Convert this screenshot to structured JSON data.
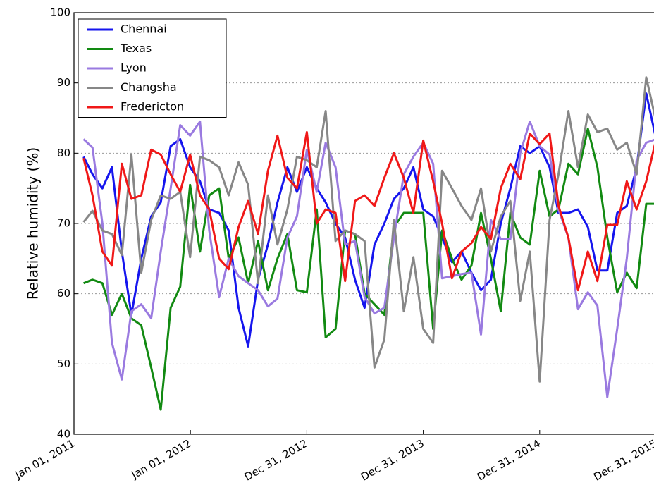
{
  "chart_data": {
    "type": "line",
    "y_label": "Relative humidity (%)",
    "x": [
      "2011-01-31",
      "2011-02-28",
      "2011-03-31",
      "2011-04-30",
      "2011-05-31",
      "2011-06-30",
      "2011-07-31",
      "2011-08-31",
      "2011-09-30",
      "2011-10-31",
      "2011-11-30",
      "2011-12-31",
      "2012-01-31",
      "2012-02-29",
      "2012-03-31",
      "2012-04-30",
      "2012-05-31",
      "2012-06-30",
      "2012-07-31",
      "2012-08-31",
      "2012-09-30",
      "2012-10-31",
      "2012-11-30",
      "2012-12-31",
      "2013-01-31",
      "2013-02-28",
      "2013-03-31",
      "2013-04-30",
      "2013-05-31",
      "2013-06-30",
      "2013-07-31",
      "2013-08-31",
      "2013-09-30",
      "2013-10-31",
      "2013-11-30",
      "2013-12-31",
      "2014-01-31",
      "2014-02-28",
      "2014-03-31",
      "2014-04-30",
      "2014-05-31",
      "2014-06-30",
      "2014-07-31",
      "2014-08-31",
      "2014-09-30",
      "2014-10-31",
      "2014-11-30",
      "2014-12-31",
      "2015-01-31",
      "2015-02-28",
      "2015-03-31",
      "2015-04-30",
      "2015-05-31",
      "2015-06-30",
      "2015-07-31",
      "2015-08-31",
      "2015-09-30",
      "2015-10-31",
      "2015-11-30",
      "2015-12-31"
    ],
    "xlim": [
      "2011-01-01",
      "2015-12-31"
    ],
    "xticks": [
      {
        "value": "2011-01-01",
        "label": "Jan 01, 2011"
      },
      {
        "value": "2012-01-01",
        "label": "Jan 01, 2012"
      },
      {
        "value": "2012-12-31",
        "label": "Dec 31, 2012"
      },
      {
        "value": "2013-12-31",
        "label": "Dec 31, 2013"
      },
      {
        "value": "2014-12-31",
        "label": "Dec 31, 2014"
      },
      {
        "value": "2015-12-31",
        "label": "Dec 31, 2015"
      }
    ],
    "ylim": [
      40,
      100
    ],
    "yticks": [
      40,
      50,
      60,
      70,
      80,
      90,
      100
    ],
    "grid": true,
    "legend": "upper left",
    "series": [
      {
        "name": "Chennai",
        "color": "#1515ee",
        "values": [
          79.5,
          77,
          75,
          78,
          66,
          57,
          65,
          71,
          73,
          81,
          82,
          78,
          76,
          72,
          71.5,
          69,
          58,
          52.5,
          62,
          67,
          73,
          78,
          74.5,
          78,
          75,
          73,
          70,
          68,
          62,
          58,
          67,
          70,
          73.5,
          75,
          78,
          72,
          71,
          68,
          64.5,
          66,
          63,
          60.5,
          62,
          70,
          75,
          81,
          80,
          81,
          78,
          71.5,
          71.5,
          72,
          69.5,
          63.3,
          63.3,
          71.5,
          72.5,
          78,
          88.5,
          82
        ]
      },
      {
        "name": "Texas",
        "color": "#128a12",
        "values": [
          61.5,
          62,
          61.5,
          57,
          60,
          56.5,
          55.5,
          49.5,
          43.5,
          58,
          61,
          75.5,
          66,
          74,
          75,
          65,
          68,
          61.5,
          67.5,
          60.5,
          65,
          68.5,
          60.5,
          60.2,
          72,
          53.8,
          55,
          69,
          68.5,
          60,
          58.5,
          57,
          69.5,
          71.5,
          71.5,
          71.5,
          55,
          69,
          65,
          62,
          64,
          71.5,
          65,
          57.5,
          71.5,
          68,
          67,
          77.5,
          71,
          72,
          78.5,
          77,
          83.5,
          78,
          68,
          60.2,
          63,
          60.8,
          72.8,
          72.8
        ]
      },
      {
        "name": "Lyon",
        "color": "#9a7ae0",
        "values": [
          82,
          80.8,
          70,
          53,
          47.8,
          57.5,
          58.5,
          56.5,
          66,
          75,
          84,
          82.5,
          84.5,
          69,
          59.5,
          65,
          62.5,
          61.5,
          60.5,
          58.2,
          59.3,
          68,
          71,
          80.5,
          74.5,
          81.5,
          78,
          67,
          67.5,
          59.5,
          57.2,
          58,
          68,
          77,
          79.5,
          81.5,
          78.5,
          62.2,
          62.5,
          62.8,
          63,
          54.2,
          70.5,
          67.8,
          67.8,
          80,
          84.5,
          81,
          79.8,
          72,
          68,
          57.8,
          60.2,
          58.3,
          45.3,
          55,
          65,
          79,
          81.5,
          82
        ]
      },
      {
        "name": "Changsha",
        "color": "#878787",
        "values": [
          70.2,
          71.8,
          69,
          68.5,
          65.5,
          79.8,
          63,
          70.5,
          74,
          73.5,
          74.5,
          65.2,
          79.5,
          79,
          78,
          74,
          78.7,
          75.5,
          61.5,
          74,
          67,
          72,
          79.5,
          79,
          78,
          86,
          67.5,
          69,
          68.5,
          67.5,
          49.5,
          53.5,
          70.5,
          57.5,
          65.2,
          55,
          53,
          77.5,
          75,
          72.5,
          70.5,
          75,
          66,
          71,
          73.2,
          59,
          66,
          47.5,
          70.5,
          77,
          86,
          78,
          85.5,
          83,
          83.5,
          80.5,
          81.5,
          77,
          90.8,
          84.5
        ]
      },
      {
        "name": "Fredericton",
        "color": "#f01818",
        "values": [
          79.3,
          74,
          66,
          64,
          78.5,
          73.5,
          74,
          80.5,
          79.8,
          77,
          74.5,
          79.8,
          74,
          72,
          65,
          63.5,
          69.5,
          73.2,
          68.5,
          77.5,
          82.5,
          76.5,
          75,
          83,
          70,
          72,
          71.5,
          61.8,
          73.2,
          74,
          72.5,
          76.5,
          80,
          76.5,
          71.5,
          81.8,
          76,
          70,
          62.2,
          66,
          67.2,
          69.5,
          67.8,
          75,
          78.5,
          76.3,
          82.8,
          81.3,
          82.8,
          72.5,
          68,
          60.5,
          66,
          61.8,
          69.8,
          69.8,
          76,
          72,
          76,
          82
        ]
      }
    ]
  }
}
